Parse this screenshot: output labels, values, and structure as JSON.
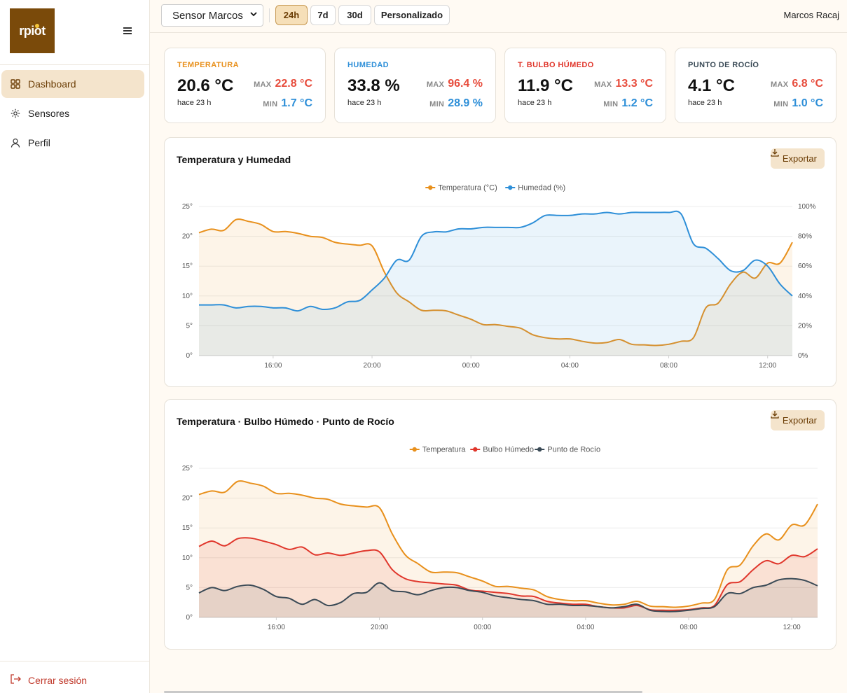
{
  "sidebar": {
    "logo_text": "rpiot",
    "items": [
      {
        "label": "Dashboard",
        "icon": "grid-icon"
      },
      {
        "label": "Sensores",
        "icon": "sensor-icon"
      },
      {
        "label": "Perfil",
        "icon": "user-icon"
      }
    ],
    "logout_label": "Cerrar sesión"
  },
  "topbar": {
    "sensor_selected": "Sensor Marcos",
    "ranges": [
      "24h",
      "7d",
      "30d",
      "Personalizado"
    ],
    "active_range": "24h",
    "user_name": "Marcos Racaj"
  },
  "cards": [
    {
      "label": "TEMPERATURA",
      "value": "20.6 °C",
      "ago": "hace 23 h",
      "max_tag": "MAX",
      "max": "22.8 °C",
      "min_tag": "MIN",
      "min": "1.7 °C",
      "color": "#e8901c"
    },
    {
      "label": "HUMEDAD",
      "value": "33.8 %",
      "ago": "hace 23 h",
      "max_tag": "MAX",
      "max": "96.4 %",
      "min_tag": "MIN",
      "min": "28.9 %",
      "color": "#2e8fd8"
    },
    {
      "label": "T. BULBO HÚMEDO",
      "value": "11.9 °C",
      "ago": "hace 23 h",
      "max_tag": "MAX",
      "max": "13.3 °C",
      "min_tag": "MIN",
      "min": "1.2 °C",
      "color": "#e0362b"
    },
    {
      "label": "PUNTO DE ROCÍO",
      "value": "4.1 °C",
      "ago": "hace 23 h",
      "max_tag": "MAX",
      "max": "6.8 °C",
      "min_tag": "MIN",
      "min": "1.0 °C",
      "color": "#3a4a56"
    }
  ],
  "export_label": "Exportar",
  "chart_data": [
    {
      "type": "area",
      "title": "Temperatura y Humedad",
      "x_ticks": [
        "16:00",
        "20:00",
        "00:00",
        "04:00",
        "08:00",
        "12:00"
      ],
      "y_left_ticks": [
        "0°",
        "5°",
        "10°",
        "15°",
        "20°",
        "25°"
      ],
      "y_right_ticks": [
        "0%",
        "20%",
        "40%",
        "60%",
        "80%",
        "100%"
      ],
      "ylim_left": [
        0,
        25
      ],
      "ylim_right": [
        0,
        100
      ],
      "legend_position": "top-center",
      "grid": true,
      "x_hours": [
        0,
        0.5,
        1,
        1.5,
        2,
        2.5,
        3,
        3.5,
        4,
        4.5,
        5,
        5.5,
        6,
        6.5,
        7,
        7.5,
        8,
        8.5,
        9,
        9.5,
        10,
        10.5,
        11,
        11.5,
        12,
        12.5,
        13,
        13.5,
        14,
        14.5,
        15,
        15.5,
        16,
        16.5,
        17,
        17.5,
        18,
        18.5,
        19,
        19.5,
        20,
        20.5,
        21,
        21.5,
        22,
        22.5,
        23,
        23.5,
        24
      ],
      "series": [
        {
          "name": "Temperatura (°C)",
          "color": "#e8901c",
          "axis": "left",
          "values": [
            20.6,
            21.2,
            21.0,
            22.8,
            22.5,
            22.0,
            20.8,
            20.8,
            20.5,
            20.0,
            19.8,
            19.0,
            18.7,
            18.5,
            18.4,
            14.0,
            10.5,
            9.0,
            7.6,
            7.6,
            7.5,
            6.8,
            6.1,
            5.2,
            5.2,
            4.9,
            4.6,
            3.5,
            3.0,
            2.8,
            2.8,
            2.4,
            2.1,
            2.2,
            2.7,
            1.9,
            1.8,
            1.7,
            1.9,
            2.4,
            3.0,
            8.0,
            8.8,
            12.0,
            14.0,
            13.0,
            15.5,
            15.5,
            19.0
          ]
        },
        {
          "name": "Humedad (%)",
          "color": "#2e8fd8",
          "axis": "right",
          "values": [
            34,
            34,
            34,
            32,
            33,
            33,
            32,
            32,
            30,
            33,
            31,
            32,
            36,
            37,
            44,
            52,
            64,
            64,
            80,
            83,
            83,
            85,
            85,
            86,
            86,
            86,
            86,
            89,
            94,
            94,
            94,
            95,
            95,
            96,
            95,
            96,
            96,
            96,
            96,
            95,
            75,
            72,
            65,
            57,
            57,
            64,
            60,
            48,
            40
          ]
        }
      ]
    },
    {
      "type": "area",
      "title": "Temperatura · Bulbo Húmedo · Punto de Rocío",
      "x_ticks": [
        "16:00",
        "20:00",
        "00:00",
        "04:00",
        "08:00",
        "12:00"
      ],
      "y_ticks": [
        "0°",
        "5°",
        "10°",
        "15°",
        "20°",
        "25°"
      ],
      "ylim": [
        0,
        25
      ],
      "legend_position": "top-center",
      "grid": true,
      "x_hours": [
        0,
        0.5,
        1,
        1.5,
        2,
        2.5,
        3,
        3.5,
        4,
        4.5,
        5,
        5.5,
        6,
        6.5,
        7,
        7.5,
        8,
        8.5,
        9,
        9.5,
        10,
        10.5,
        11,
        11.5,
        12,
        12.5,
        13,
        13.5,
        14,
        14.5,
        15,
        15.5,
        16,
        16.5,
        17,
        17.5,
        18,
        18.5,
        19,
        19.5,
        20,
        20.5,
        21,
        21.5,
        22,
        22.5,
        23,
        23.5,
        24
      ],
      "series": [
        {
          "name": "Temperatura",
          "color": "#e8901c",
          "values": [
            20.6,
            21.2,
            21.0,
            22.8,
            22.5,
            22.0,
            20.8,
            20.8,
            20.5,
            20.0,
            19.8,
            19.0,
            18.7,
            18.5,
            18.4,
            14.0,
            10.5,
            9.0,
            7.6,
            7.6,
            7.5,
            6.8,
            6.1,
            5.2,
            5.2,
            4.9,
            4.6,
            3.5,
            3.0,
            2.8,
            2.8,
            2.4,
            2.1,
            2.2,
            2.7,
            1.9,
            1.8,
            1.7,
            1.9,
            2.4,
            3.0,
            8.0,
            8.8,
            12.0,
            14.0,
            13.0,
            15.5,
            15.5,
            19.0
          ]
        },
        {
          "name": "Bulbo Húmedo",
          "color": "#e0362b",
          "values": [
            11.9,
            12.8,
            12.0,
            13.2,
            13.3,
            12.8,
            12.2,
            11.4,
            11.8,
            10.5,
            10.8,
            10.4,
            10.8,
            11.2,
            11.0,
            8.0,
            6.5,
            6.0,
            5.8,
            5.6,
            5.4,
            4.6,
            4.4,
            4.2,
            4.0,
            3.6,
            3.5,
            2.7,
            2.4,
            2.2,
            2.2,
            1.8,
            1.6,
            1.6,
            2.0,
            1.3,
            1.2,
            1.2,
            1.3,
            1.6,
            2.0,
            5.5,
            6.0,
            8.0,
            9.5,
            9.0,
            10.4,
            10.2,
            11.5
          ]
        },
        {
          "name": "Punto de Rocío",
          "color": "#3a4a56",
          "values": [
            4.1,
            5.0,
            4.5,
            5.2,
            5.4,
            4.7,
            3.5,
            3.2,
            2.2,
            3.0,
            2.0,
            2.5,
            4.0,
            4.2,
            5.8,
            4.5,
            4.3,
            3.8,
            4.5,
            5.0,
            5.0,
            4.5,
            4.2,
            3.6,
            3.3,
            3.0,
            2.8,
            2.2,
            2.2,
            2.0,
            2.0,
            1.8,
            1.6,
            1.8,
            2.2,
            1.2,
            1.0,
            1.0,
            1.2,
            1.5,
            1.8,
            4.0,
            4.0,
            5.0,
            5.4,
            6.3,
            6.5,
            6.2,
            5.3
          ]
        }
      ]
    }
  ]
}
